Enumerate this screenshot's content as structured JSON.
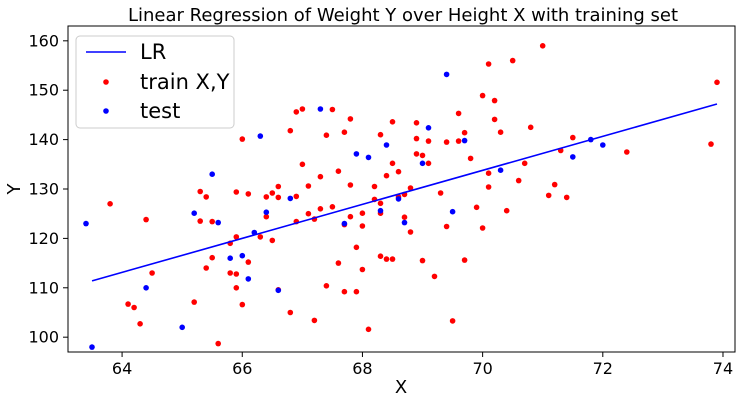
{
  "chart_data": {
    "type": "scatter",
    "title": "Linear Regression of Weight Y over Height X with training set",
    "xlabel": "X",
    "ylabel": "Y",
    "xlim": [
      63.1,
      74.2
    ],
    "ylim": [
      97.0,
      163.0
    ],
    "xticks": [
      64,
      66,
      68,
      70,
      72,
      74
    ],
    "yticks": [
      100,
      110,
      120,
      130,
      140,
      150,
      160
    ],
    "grid": false,
    "legend_position": "top-left",
    "colors": {
      "line": "#0000ff",
      "train": "#ff0000",
      "test": "#0000ff"
    },
    "line": {
      "name": "LR",
      "x": [
        63.5,
        73.9
      ],
      "y": [
        111.4,
        147.2
      ]
    },
    "series": [
      {
        "name": "train X,Y",
        "x": [
          63.8,
          64.1,
          64.2,
          64.3,
          64.4,
          64.5,
          65.2,
          65.3,
          65.3,
          65.4,
          65.4,
          65.5,
          65.5,
          65.6,
          65.8,
          65.8,
          65.9,
          65.9,
          65.9,
          65.9,
          66.0,
          66.0,
          66.1,
          66.1,
          66.3,
          66.4,
          66.4,
          66.5,
          66.5,
          66.6,
          66.6,
          66.6,
          66.8,
          66.8,
          66.9,
          66.9,
          66.9,
          67.0,
          67.0,
          67.1,
          67.1,
          67.2,
          67.2,
          67.3,
          67.3,
          67.4,
          67.4,
          67.5,
          67.5,
          67.6,
          67.6,
          67.7,
          67.7,
          67.7,
          67.8,
          67.8,
          67.8,
          67.9,
          67.9,
          68.0,
          68.0,
          68.0,
          68.1,
          68.2,
          68.2,
          68.3,
          68.3,
          68.3,
          68.3,
          68.4,
          68.4,
          68.5,
          68.5,
          68.5,
          68.6,
          68.6,
          68.7,
          68.7,
          68.8,
          68.8,
          68.9,
          68.9,
          68.9,
          69.0,
          69.0,
          69.1,
          69.1,
          69.2,
          69.3,
          69.4,
          69.4,
          69.5,
          69.6,
          69.6,
          69.7,
          69.7,
          69.8,
          69.9,
          70.0,
          70.0,
          70.1,
          70.1,
          70.1,
          70.2,
          70.2,
          70.3,
          70.4,
          70.5,
          70.6,
          70.7,
          70.8,
          71.0,
          71.1,
          71.2,
          71.3,
          71.4,
          71.5,
          72.4,
          73.8,
          73.9
        ],
        "y": [
          127.0,
          106.7,
          106.0,
          102.7,
          123.8,
          113.0,
          107.1,
          129.5,
          123.5,
          114.0,
          128.4,
          123.4,
          116.1,
          98.7,
          113.0,
          119.0,
          120.3,
          129.4,
          110.0,
          112.8,
          140.1,
          106.6,
          115.2,
          129.0,
          120.3,
          128.4,
          124.4,
          129.2,
          119.6,
          128.3,
          130.5,
          109.6,
          141.8,
          105.0,
          145.6,
          128.5,
          123.4,
          146.2,
          135.0,
          125.0,
          130.6,
          123.9,
          103.4,
          126.0,
          132.5,
          140.9,
          110.4,
          146.1,
          126.4,
          133.6,
          115.0,
          141.5,
          122.8,
          109.2,
          124.4,
          144.2,
          130.8,
          109.2,
          118.2,
          125.1,
          122.5,
          113.7,
          101.6,
          127.9,
          130.5,
          141.0,
          127.1,
          125.1,
          116.4,
          132.7,
          115.8,
          143.6,
          135.2,
          115.8,
          128.4,
          133.5,
          124.3,
          128.9,
          130.2,
          121.3,
          137.1,
          140.2,
          143.4,
          136.8,
          115.5,
          135.2,
          139.7,
          112.3,
          129.2,
          122.4,
          139.5,
          103.3,
          145.3,
          139.7,
          141.4,
          115.6,
          136.2,
          126.3,
          148.9,
          122.1,
          130.4,
          155.3,
          133.2,
          144.1,
          147.9,
          141.5,
          125.6,
          156.0,
          131.7,
          135.2,
          142.5,
          159.0,
          128.7,
          130.9,
          137.8,
          128.3,
          140.4,
          137.5,
          139.1,
          151.6
        ]
      },
      {
        "name": "test",
        "x": [
          63.4,
          63.5,
          64.4,
          65.0,
          65.2,
          65.5,
          65.6,
          65.8,
          66.0,
          66.1,
          66.2,
          66.3,
          66.4,
          66.6,
          66.8,
          67.3,
          67.7,
          67.9,
          68.1,
          68.3,
          68.4,
          68.6,
          68.7,
          69.0,
          69.1,
          69.4,
          69.5,
          69.7,
          70.3,
          71.5,
          71.8,
          72.0
        ],
        "y": [
          123.0,
          98.0,
          110.0,
          102.0,
          125.1,
          133.0,
          123.2,
          116.0,
          116.5,
          111.8,
          121.2,
          140.7,
          125.3,
          109.5,
          128.1,
          146.2,
          123.0,
          137.1,
          136.4,
          125.6,
          138.9,
          128.0,
          123.2,
          135.2,
          142.4,
          153.2,
          125.4,
          139.8,
          133.8,
          136.5,
          140.0,
          138.9
        ]
      }
    ]
  }
}
